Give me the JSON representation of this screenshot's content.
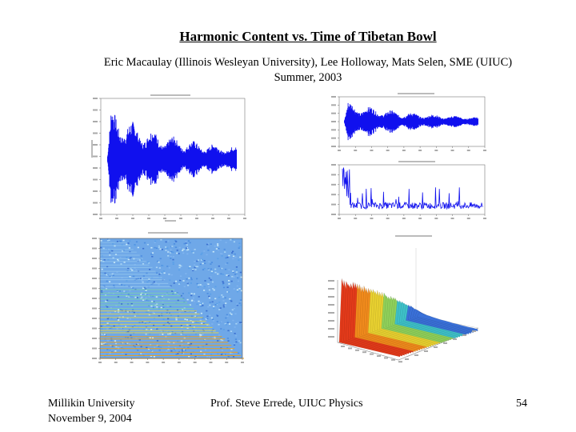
{
  "slide": {
    "title": "Harmonic Content vs. Time of Tibetan Bowl",
    "authors_line1": "Eric Macaulay (Illinois Wesleyan University), Lee Holloway, Mats Selen, SME (UIUC)",
    "authors_line2": "Summer, 2003"
  },
  "footer": {
    "org": "Millikin University",
    "date": "November 9, 2004",
    "presenter": "Prof. Steve Errede, UIUC Physics",
    "page": "54"
  },
  "colors": {
    "signal": "#1010ee",
    "axes": "#444444",
    "spectrogram_bg": "#6fa8e8",
    "surface_high": "#e33a1a"
  }
}
